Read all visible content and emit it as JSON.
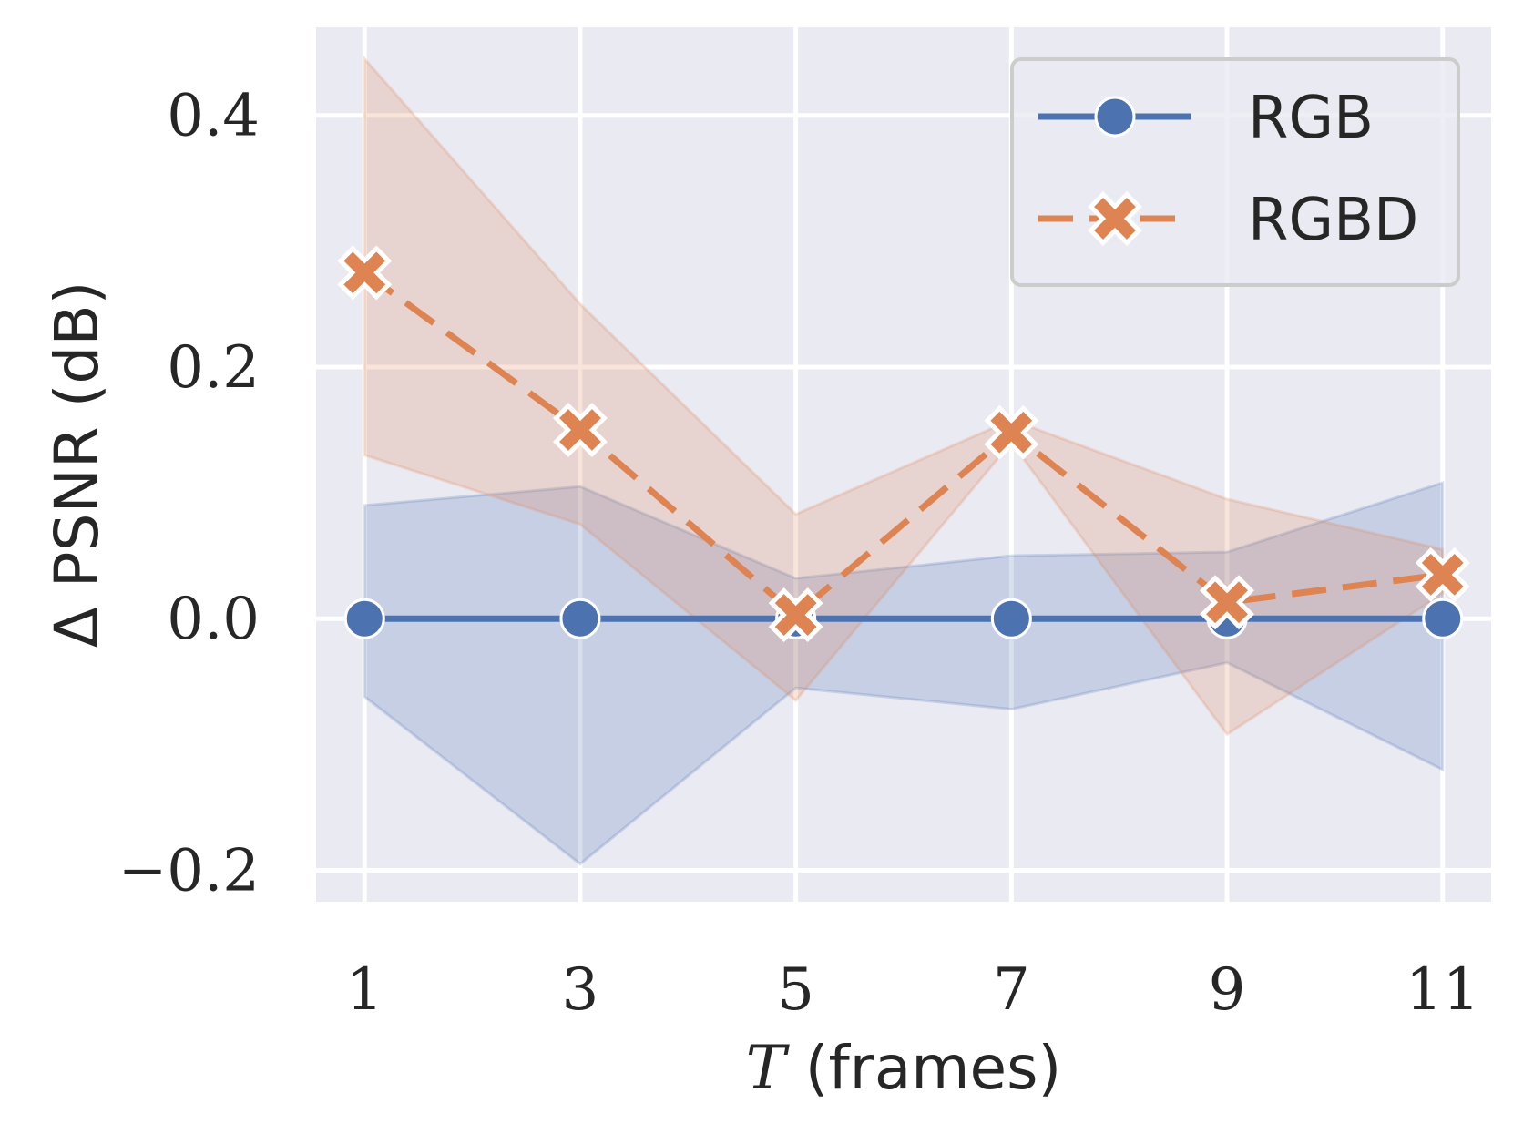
{
  "chart_data": {
    "type": "line",
    "title": "",
    "xlabel_var": "T",
    "xlabel_rest": " (frames)",
    "ylabel": "Δ PSNR (dB)",
    "x": [
      1,
      3,
      5,
      7,
      9,
      11
    ],
    "x_tick_labels": [
      "1",
      "3",
      "5",
      "7",
      "9",
      "11"
    ],
    "xlim": [
      0.55,
      11.45
    ],
    "ylim": [
      -0.225,
      0.47
    ],
    "y_ticks": [
      -0.2,
      0.0,
      0.2,
      0.4
    ],
    "y_tick_labels": [
      "−0.2",
      "0.0",
      "0.2",
      "0.4"
    ],
    "grid": true,
    "legend_position": "top-right",
    "series": [
      {
        "name": "RGB",
        "color": "#4C72B0",
        "marker": "circle",
        "linestyle": "solid",
        "values": [
          0.0,
          0.0,
          0.0,
          0.0,
          0.0,
          0.0
        ],
        "ci_lower": [
          -0.062,
          -0.195,
          -0.055,
          -0.072,
          -0.035,
          -0.12
        ],
        "ci_upper": [
          0.09,
          0.105,
          0.032,
          0.05,
          0.053,
          0.108
        ]
      },
      {
        "name": "RGBD",
        "color": "#DD8452",
        "marker": "x",
        "linestyle": "dashed",
        "values": [
          0.275,
          0.15,
          0.003,
          0.148,
          0.013,
          0.035
        ],
        "ci_lower": [
          0.13,
          0.075,
          -0.065,
          0.14,
          -0.092,
          0.02
        ],
        "ci_upper": [
          0.445,
          0.25,
          0.083,
          0.158,
          0.095,
          0.055
        ]
      }
    ]
  }
}
